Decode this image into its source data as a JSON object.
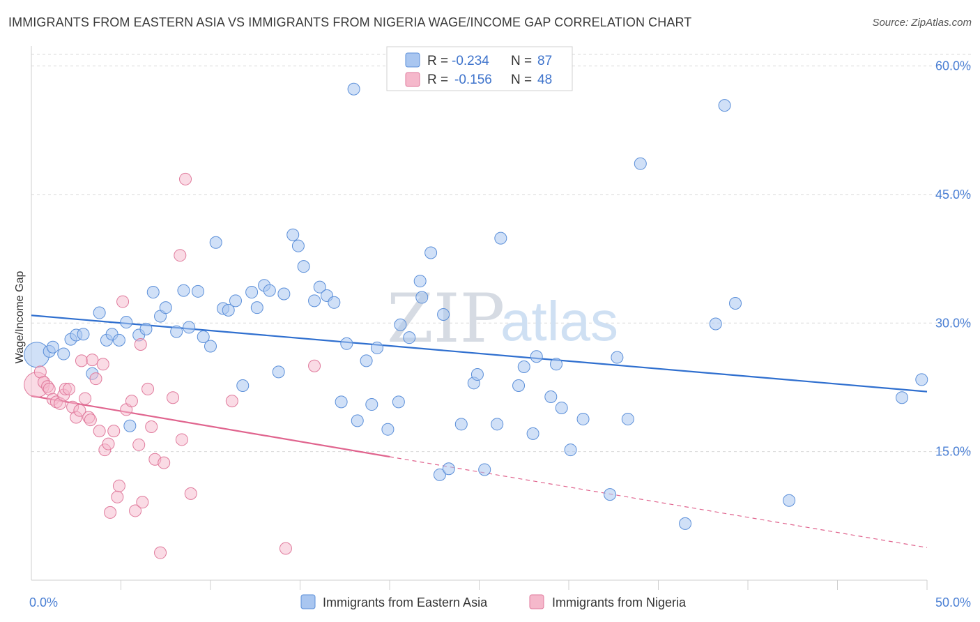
{
  "title": "IMMIGRANTS FROM EASTERN ASIA VS IMMIGRANTS FROM NIGERIA WAGE/INCOME GAP CORRELATION CHART",
  "source": "Source: ZipAtlas.com",
  "watermark": {
    "zip": "ZIP",
    "atlas": "atlas"
  },
  "colors": {
    "blue_fill": "#a9c6f0",
    "blue_stroke": "#5b8fd9",
    "blue_line": "#2f6fcf",
    "pink_fill": "#f5b8cb",
    "pink_stroke": "#e07a9c",
    "pink_line": "#e0648e",
    "grid": "#d9d9d9",
    "axis_text": "#4a7fd4"
  },
  "legend": {
    "r_label": "R =",
    "n_label": "N =",
    "series": [
      {
        "r": "-0.234",
        "n": "87"
      },
      {
        "r": "-0.156",
        "n": "48"
      }
    ]
  },
  "chart_data": {
    "type": "scatter",
    "title": "IMMIGRANTS FROM EASTERN ASIA VS IMMIGRANTS FROM NIGERIA WAGE/INCOME GAP CORRELATION CHART",
    "xlabel": "",
    "ylabel": "Wage/Income Gap",
    "xlim": [
      0,
      50
    ],
    "ylim": [
      0,
      62
    ],
    "x_tick_labels": [
      "0.0%",
      "50.0%"
    ],
    "y_ticks": [
      15,
      30,
      45,
      60
    ],
    "y_tick_labels": [
      "15.0%",
      "30.0%",
      "45.0%",
      "60.0%"
    ],
    "x_minor_ticks": [
      5,
      10,
      15,
      20,
      25,
      30,
      35,
      40,
      45,
      50
    ],
    "series": [
      {
        "name": "Immigrants from Eastern Asia",
        "trend": {
          "x0": 0,
          "y0": 30.9,
          "x1": 50,
          "y1": 22.0
        },
        "points": [
          {
            "x": 0.3,
            "y": 26.3,
            "big": true
          },
          {
            "x": 1.0,
            "y": 26.7
          },
          {
            "x": 1.2,
            "y": 27.2
          },
          {
            "x": 1.8,
            "y": 26.4
          },
          {
            "x": 2.2,
            "y": 28.1
          },
          {
            "x": 2.5,
            "y": 28.6
          },
          {
            "x": 2.9,
            "y": 28.7
          },
          {
            "x": 3.4,
            "y": 24.1
          },
          {
            "x": 3.8,
            "y": 31.2
          },
          {
            "x": 4.2,
            "y": 28.0
          },
          {
            "x": 4.5,
            "y": 28.7
          },
          {
            "x": 4.9,
            "y": 28.0
          },
          {
            "x": 5.3,
            "y": 30.1
          },
          {
            "x": 5.5,
            "y": 18.0
          },
          {
            "x": 6.0,
            "y": 28.6
          },
          {
            "x": 6.4,
            "y": 29.3
          },
          {
            "x": 6.8,
            "y": 33.6
          },
          {
            "x": 7.2,
            "y": 30.8
          },
          {
            "x": 7.5,
            "y": 31.8
          },
          {
            "x": 8.1,
            "y": 29.0
          },
          {
            "x": 8.5,
            "y": 33.8
          },
          {
            "x": 8.8,
            "y": 29.5
          },
          {
            "x": 9.3,
            "y": 33.7
          },
          {
            "x": 9.6,
            "y": 28.4
          },
          {
            "x": 10.0,
            "y": 27.3
          },
          {
            "x": 10.3,
            "y": 39.4
          },
          {
            "x": 10.7,
            "y": 31.7
          },
          {
            "x": 11.0,
            "y": 31.5
          },
          {
            "x": 11.4,
            "y": 32.6
          },
          {
            "x": 11.8,
            "y": 22.7
          },
          {
            "x": 12.3,
            "y": 33.6
          },
          {
            "x": 12.6,
            "y": 31.8
          },
          {
            "x": 13.0,
            "y": 34.4
          },
          {
            "x": 13.3,
            "y": 33.8
          },
          {
            "x": 13.8,
            "y": 24.3
          },
          {
            "x": 14.1,
            "y": 33.4
          },
          {
            "x": 14.6,
            "y": 40.3
          },
          {
            "x": 14.9,
            "y": 39.0
          },
          {
            "x": 15.2,
            "y": 36.6
          },
          {
            "x": 15.8,
            "y": 32.6
          },
          {
            "x": 16.1,
            "y": 34.2
          },
          {
            "x": 16.5,
            "y": 33.2
          },
          {
            "x": 16.9,
            "y": 32.4
          },
          {
            "x": 17.3,
            "y": 20.8
          },
          {
            "x": 17.6,
            "y": 27.6
          },
          {
            "x": 18.0,
            "y": 57.3
          },
          {
            "x": 18.2,
            "y": 18.6
          },
          {
            "x": 18.7,
            "y": 25.6
          },
          {
            "x": 19.0,
            "y": 20.5
          },
          {
            "x": 19.3,
            "y": 27.1
          },
          {
            "x": 19.9,
            "y": 17.6
          },
          {
            "x": 20.5,
            "y": 20.8
          },
          {
            "x": 20.6,
            "y": 29.8
          },
          {
            "x": 21.1,
            "y": 28.3
          },
          {
            "x": 21.7,
            "y": 34.9
          },
          {
            "x": 21.8,
            "y": 33.0
          },
          {
            "x": 22.3,
            "y": 38.2
          },
          {
            "x": 22.8,
            "y": 12.3
          },
          {
            "x": 23.0,
            "y": 31.0
          },
          {
            "x": 23.3,
            "y": 13.0
          },
          {
            "x": 24.0,
            "y": 18.2
          },
          {
            "x": 24.7,
            "y": 23.0
          },
          {
            "x": 24.9,
            "y": 24.0
          },
          {
            "x": 25.3,
            "y": 12.9
          },
          {
            "x": 26.0,
            "y": 18.2
          },
          {
            "x": 26.2,
            "y": 39.9
          },
          {
            "x": 27.2,
            "y": 22.7
          },
          {
            "x": 27.5,
            "y": 24.9
          },
          {
            "x": 28.0,
            "y": 17.1
          },
          {
            "x": 28.2,
            "y": 26.1
          },
          {
            "x": 29.0,
            "y": 21.4
          },
          {
            "x": 29.3,
            "y": 25.2
          },
          {
            "x": 29.6,
            "y": 20.1
          },
          {
            "x": 30.1,
            "y": 15.2
          },
          {
            "x": 30.8,
            "y": 18.8
          },
          {
            "x": 32.3,
            "y": 10.0
          },
          {
            "x": 32.7,
            "y": 26.0
          },
          {
            "x": 33.3,
            "y": 18.8
          },
          {
            "x": 34.0,
            "y": 48.6
          },
          {
            "x": 36.5,
            "y": 6.6
          },
          {
            "x": 38.2,
            "y": 29.9
          },
          {
            "x": 38.7,
            "y": 55.4
          },
          {
            "x": 39.3,
            "y": 32.3
          },
          {
            "x": 42.3,
            "y": 9.3
          },
          {
            "x": 48.6,
            "y": 21.3
          },
          {
            "x": 49.7,
            "y": 23.4
          }
        ]
      },
      {
        "name": "Immigrants from Nigeria",
        "trend": {
          "x0": 0,
          "y0": 21.5,
          "x1": 20,
          "y1": 14.4,
          "dash_x1": 50,
          "dash_y1": 3.8
        },
        "points": [
          {
            "x": 0.3,
            "y": 22.8,
            "big": true
          },
          {
            "x": 0.5,
            "y": 24.3
          },
          {
            "x": 0.7,
            "y": 23.1
          },
          {
            "x": 0.9,
            "y": 22.6
          },
          {
            "x": 1.0,
            "y": 22.3
          },
          {
            "x": 1.2,
            "y": 21.1
          },
          {
            "x": 1.4,
            "y": 20.8
          },
          {
            "x": 1.6,
            "y": 20.6
          },
          {
            "x": 1.8,
            "y": 21.6
          },
          {
            "x": 1.9,
            "y": 22.3
          },
          {
            "x": 2.1,
            "y": 22.3
          },
          {
            "x": 2.3,
            "y": 20.2
          },
          {
            "x": 2.5,
            "y": 19.0
          },
          {
            "x": 2.7,
            "y": 19.8
          },
          {
            "x": 2.8,
            "y": 25.6
          },
          {
            "x": 3.0,
            "y": 21.2
          },
          {
            "x": 3.2,
            "y": 19.0
          },
          {
            "x": 3.4,
            "y": 25.7
          },
          {
            "x": 3.6,
            "y": 23.5
          },
          {
            "x": 3.8,
            "y": 17.4
          },
          {
            "x": 4.0,
            "y": 25.2
          },
          {
            "x": 4.1,
            "y": 15.2
          },
          {
            "x": 4.3,
            "y": 15.9
          },
          {
            "x": 4.4,
            "y": 7.9
          },
          {
            "x": 4.6,
            "y": 17.4
          },
          {
            "x": 4.8,
            "y": 9.7
          },
          {
            "x": 4.9,
            "y": 11.0
          },
          {
            "x": 5.1,
            "y": 32.5
          },
          {
            "x": 5.3,
            "y": 19.9
          },
          {
            "x": 5.6,
            "y": 20.9
          },
          {
            "x": 5.8,
            "y": 8.1
          },
          {
            "x": 6.0,
            "y": 15.8
          },
          {
            "x": 6.1,
            "y": 27.5
          },
          {
            "x": 6.2,
            "y": 9.1
          },
          {
            "x": 6.5,
            "y": 22.3
          },
          {
            "x": 6.7,
            "y": 17.9
          },
          {
            "x": 6.9,
            "y": 14.1
          },
          {
            "x": 7.2,
            "y": 3.2
          },
          {
            "x": 7.4,
            "y": 13.7
          },
          {
            "x": 7.9,
            "y": 21.3
          },
          {
            "x": 8.3,
            "y": 37.9
          },
          {
            "x": 8.4,
            "y": 16.4
          },
          {
            "x": 8.6,
            "y": 46.8
          },
          {
            "x": 8.9,
            "y": 10.1
          },
          {
            "x": 11.2,
            "y": 20.9
          },
          {
            "x": 14.2,
            "y": 3.7
          },
          {
            "x": 15.8,
            "y": 25.0
          },
          {
            "x": 3.3,
            "y": 18.7
          }
        ]
      }
    ]
  },
  "bottom_legend": [
    {
      "label": "Immigrants from Eastern Asia"
    },
    {
      "label": "Immigrants from Nigeria"
    }
  ]
}
